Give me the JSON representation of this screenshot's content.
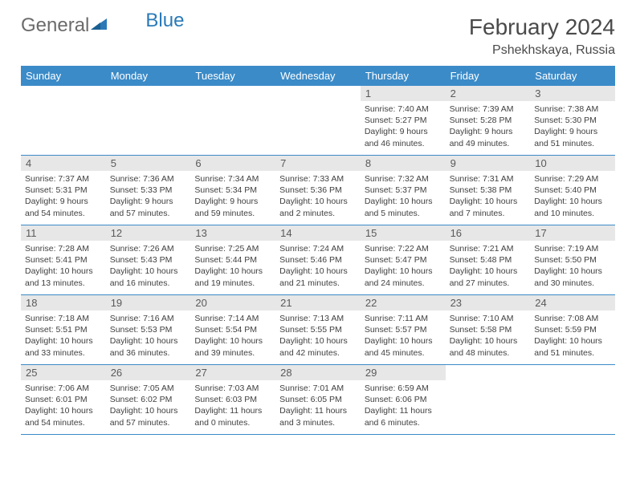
{
  "logo": {
    "text1": "General",
    "text2": "Blue"
  },
  "title": "February 2024",
  "location": "Pshekhskaya, Russia",
  "colors": {
    "header_bg": "#3b8bc8",
    "header_fg": "#ffffff",
    "daynum_bg": "#e7e7e7",
    "rule": "#3b8bc8",
    "text": "#404040"
  },
  "weekdays": [
    "Sunday",
    "Monday",
    "Tuesday",
    "Wednesday",
    "Thursday",
    "Friday",
    "Saturday"
  ],
  "weeks": [
    [
      null,
      null,
      null,
      null,
      {
        "n": "1",
        "sr": "Sunrise: 7:40 AM",
        "ss": "Sunset: 5:27 PM",
        "dl": "Daylight: 9 hours and 46 minutes."
      },
      {
        "n": "2",
        "sr": "Sunrise: 7:39 AM",
        "ss": "Sunset: 5:28 PM",
        "dl": "Daylight: 9 hours and 49 minutes."
      },
      {
        "n": "3",
        "sr": "Sunrise: 7:38 AM",
        "ss": "Sunset: 5:30 PM",
        "dl": "Daylight: 9 hours and 51 minutes."
      }
    ],
    [
      {
        "n": "4",
        "sr": "Sunrise: 7:37 AM",
        "ss": "Sunset: 5:31 PM",
        "dl": "Daylight: 9 hours and 54 minutes."
      },
      {
        "n": "5",
        "sr": "Sunrise: 7:36 AM",
        "ss": "Sunset: 5:33 PM",
        "dl": "Daylight: 9 hours and 57 minutes."
      },
      {
        "n": "6",
        "sr": "Sunrise: 7:34 AM",
        "ss": "Sunset: 5:34 PM",
        "dl": "Daylight: 9 hours and 59 minutes."
      },
      {
        "n": "7",
        "sr": "Sunrise: 7:33 AM",
        "ss": "Sunset: 5:36 PM",
        "dl": "Daylight: 10 hours and 2 minutes."
      },
      {
        "n": "8",
        "sr": "Sunrise: 7:32 AM",
        "ss": "Sunset: 5:37 PM",
        "dl": "Daylight: 10 hours and 5 minutes."
      },
      {
        "n": "9",
        "sr": "Sunrise: 7:31 AM",
        "ss": "Sunset: 5:38 PM",
        "dl": "Daylight: 10 hours and 7 minutes."
      },
      {
        "n": "10",
        "sr": "Sunrise: 7:29 AM",
        "ss": "Sunset: 5:40 PM",
        "dl": "Daylight: 10 hours and 10 minutes."
      }
    ],
    [
      {
        "n": "11",
        "sr": "Sunrise: 7:28 AM",
        "ss": "Sunset: 5:41 PM",
        "dl": "Daylight: 10 hours and 13 minutes."
      },
      {
        "n": "12",
        "sr": "Sunrise: 7:26 AM",
        "ss": "Sunset: 5:43 PM",
        "dl": "Daylight: 10 hours and 16 minutes."
      },
      {
        "n": "13",
        "sr": "Sunrise: 7:25 AM",
        "ss": "Sunset: 5:44 PM",
        "dl": "Daylight: 10 hours and 19 minutes."
      },
      {
        "n": "14",
        "sr": "Sunrise: 7:24 AM",
        "ss": "Sunset: 5:46 PM",
        "dl": "Daylight: 10 hours and 21 minutes."
      },
      {
        "n": "15",
        "sr": "Sunrise: 7:22 AM",
        "ss": "Sunset: 5:47 PM",
        "dl": "Daylight: 10 hours and 24 minutes."
      },
      {
        "n": "16",
        "sr": "Sunrise: 7:21 AM",
        "ss": "Sunset: 5:48 PM",
        "dl": "Daylight: 10 hours and 27 minutes."
      },
      {
        "n": "17",
        "sr": "Sunrise: 7:19 AM",
        "ss": "Sunset: 5:50 PM",
        "dl": "Daylight: 10 hours and 30 minutes."
      }
    ],
    [
      {
        "n": "18",
        "sr": "Sunrise: 7:18 AM",
        "ss": "Sunset: 5:51 PM",
        "dl": "Daylight: 10 hours and 33 minutes."
      },
      {
        "n": "19",
        "sr": "Sunrise: 7:16 AM",
        "ss": "Sunset: 5:53 PM",
        "dl": "Daylight: 10 hours and 36 minutes."
      },
      {
        "n": "20",
        "sr": "Sunrise: 7:14 AM",
        "ss": "Sunset: 5:54 PM",
        "dl": "Daylight: 10 hours and 39 minutes."
      },
      {
        "n": "21",
        "sr": "Sunrise: 7:13 AM",
        "ss": "Sunset: 5:55 PM",
        "dl": "Daylight: 10 hours and 42 minutes."
      },
      {
        "n": "22",
        "sr": "Sunrise: 7:11 AM",
        "ss": "Sunset: 5:57 PM",
        "dl": "Daylight: 10 hours and 45 minutes."
      },
      {
        "n": "23",
        "sr": "Sunrise: 7:10 AM",
        "ss": "Sunset: 5:58 PM",
        "dl": "Daylight: 10 hours and 48 minutes."
      },
      {
        "n": "24",
        "sr": "Sunrise: 7:08 AM",
        "ss": "Sunset: 5:59 PM",
        "dl": "Daylight: 10 hours and 51 minutes."
      }
    ],
    [
      {
        "n": "25",
        "sr": "Sunrise: 7:06 AM",
        "ss": "Sunset: 6:01 PM",
        "dl": "Daylight: 10 hours and 54 minutes."
      },
      {
        "n": "26",
        "sr": "Sunrise: 7:05 AM",
        "ss": "Sunset: 6:02 PM",
        "dl": "Daylight: 10 hours and 57 minutes."
      },
      {
        "n": "27",
        "sr": "Sunrise: 7:03 AM",
        "ss": "Sunset: 6:03 PM",
        "dl": "Daylight: 11 hours and 0 minutes."
      },
      {
        "n": "28",
        "sr": "Sunrise: 7:01 AM",
        "ss": "Sunset: 6:05 PM",
        "dl": "Daylight: 11 hours and 3 minutes."
      },
      {
        "n": "29",
        "sr": "Sunrise: 6:59 AM",
        "ss": "Sunset: 6:06 PM",
        "dl": "Daylight: 11 hours and 6 minutes."
      },
      null,
      null
    ]
  ]
}
